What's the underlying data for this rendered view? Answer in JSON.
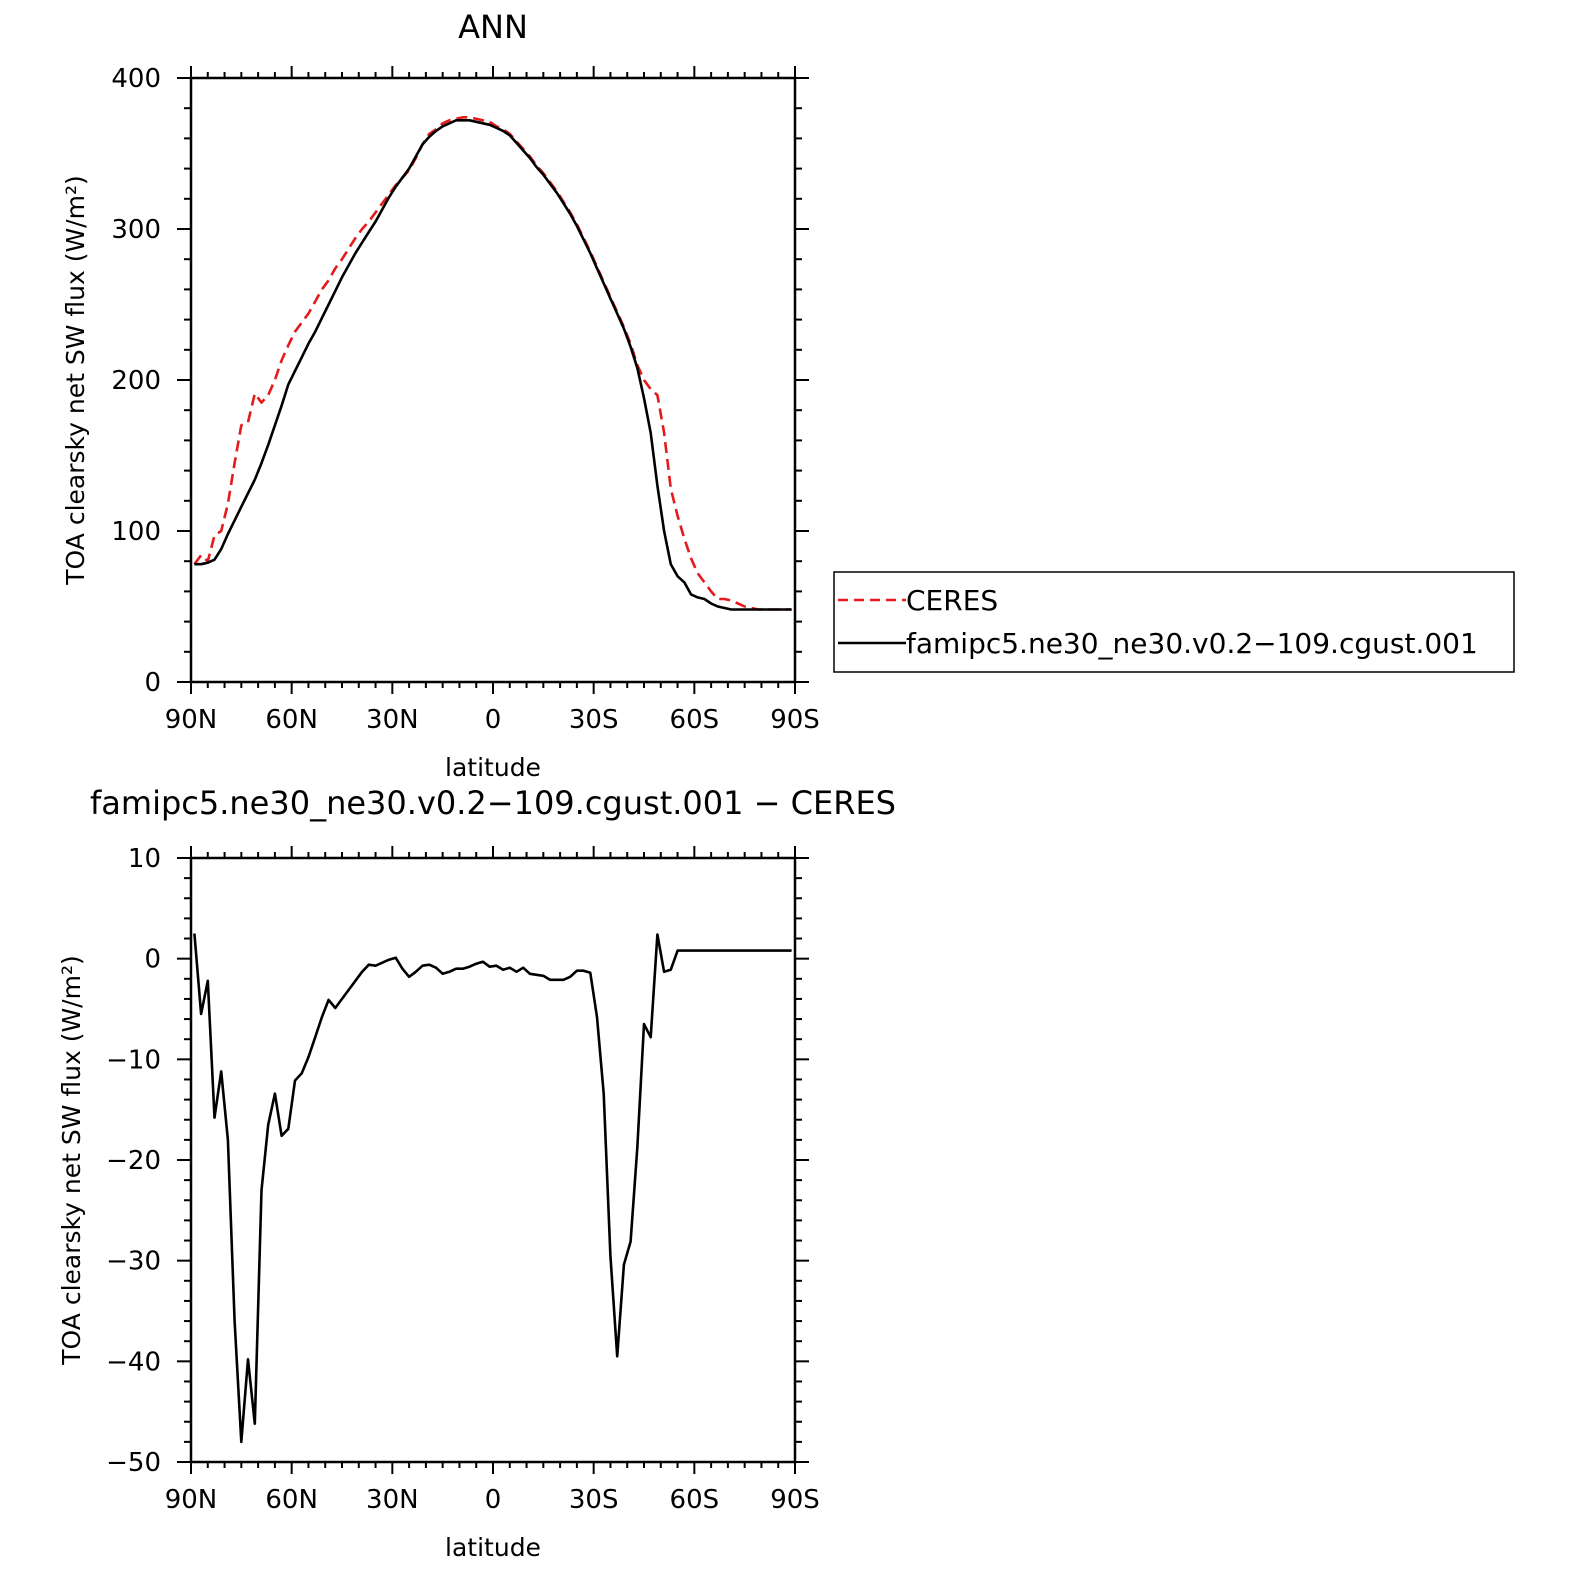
{
  "figure": {
    "top_title": "ANN",
    "bottom_title": "famipc5.ne30_ne30.v0.2−109.cgust.001  −  CERES"
  },
  "chart_data": [
    {
      "type": "line",
      "title": "ANN",
      "xlabel": "latitude",
      "ylabel": "TOA clearsky net SW flux (W/m²)",
      "ylim": [
        0,
        400
      ],
      "xlim": [
        90,
        -90
      ],
      "x_tick_values": [
        90,
        60,
        30,
        0,
        -30,
        -60,
        -90
      ],
      "x_tick_labels": [
        "90N",
        "60N",
        "30N",
        "0",
        "30S",
        "60S",
        "90S"
      ],
      "y_tick_values": [
        0,
        100,
        200,
        300,
        400
      ],
      "y_tick_labels": [
        "0",
        "100",
        "200",
        "300",
        "400"
      ],
      "grid": false,
      "legend_position": "right",
      "series": [
        {
          "name": "CERES",
          "color": "#e41a1c",
          "style": "dashed",
          "x": [
            89,
            87,
            85,
            83,
            81,
            79,
            77,
            75,
            73,
            71,
            69,
            67,
            65,
            63,
            61,
            59,
            57,
            55,
            53,
            51,
            49,
            47,
            45,
            43,
            41,
            39,
            37,
            35,
            33,
            31,
            29,
            27,
            25,
            23,
            21,
            19,
            17,
            15,
            13,
            11,
            9,
            7,
            5,
            3,
            1,
            -1,
            -3,
            -5,
            -7,
            -9,
            -11,
            -13,
            -15,
            -17,
            -19,
            -21,
            -23,
            -25,
            -27,
            -29,
            -31,
            -33,
            -35,
            -37,
            -39,
            -41,
            -43,
            -45,
            -47,
            -49,
            -51,
            -53,
            -55,
            -57,
            -59,
            -61,
            -63,
            -65,
            -67,
            -69,
            -71,
            -73,
            -75,
            -77,
            -79,
            -81,
            -83,
            -85,
            -87,
            -89
          ],
          "y": [
            78,
            84,
            80,
            97,
            100,
            118,
            145,
            170,
            172,
            191,
            185,
            190,
            200,
            213,
            223,
            232,
            238,
            244,
            252,
            260,
            266,
            274,
            280,
            287,
            294,
            300,
            305,
            311,
            317,
            323,
            329,
            334,
            339,
            347,
            356,
            363,
            366,
            370,
            372,
            373,
            374,
            374,
            373,
            372,
            371,
            368,
            366,
            363,
            358,
            353,
            348,
            342,
            337,
            331,
            325,
            318,
            311,
            303,
            294,
            285,
            275,
            265,
            255,
            245,
            235,
            224,
            210,
            200,
            194,
            190,
            165,
            128,
            110,
            95,
            82,
            72,
            66,
            60,
            55,
            55,
            54,
            52,
            50,
            49,
            48,
            48,
            48,
            48,
            48,
            48
          ]
        },
        {
          "name": "famipc5.ne30_ne30.v0.2−109.cgust.001",
          "color": "#000000",
          "style": "solid",
          "x": [
            89,
            87,
            85,
            83,
            81,
            79,
            77,
            75,
            73,
            71,
            69,
            67,
            65,
            63,
            61,
            59,
            57,
            55,
            53,
            51,
            49,
            47,
            45,
            43,
            41,
            39,
            37,
            35,
            33,
            31,
            29,
            27,
            25,
            23,
            21,
            19,
            17,
            15,
            13,
            11,
            9,
            7,
            5,
            3,
            1,
            -1,
            -3,
            -5,
            -7,
            -9,
            -11,
            -13,
            -15,
            -17,
            -19,
            -21,
            -23,
            -25,
            -27,
            -29,
            -31,
            -33,
            -35,
            -37,
            -39,
            -41,
            -43,
            -45,
            -47,
            -49,
            -51,
            -53,
            -55,
            -57,
            -59,
            -61,
            -63,
            -65,
            -67,
            -69,
            -71,
            -73,
            -75,
            -77,
            -79,
            -81,
            -83,
            -85,
            -87,
            -89
          ],
          "y": [
            78,
            78,
            79,
            81,
            88,
            98,
            107,
            116,
            125,
            134,
            145,
            157,
            170,
            183,
            197,
            206,
            215,
            224,
            232,
            241,
            250,
            259,
            268,
            276,
            284,
            291,
            298,
            305,
            313,
            321,
            328,
            334,
            340,
            348,
            356,
            361,
            365,
            368,
            370,
            372,
            372,
            372,
            371,
            370,
            369,
            367,
            365,
            362,
            357,
            352,
            347,
            341,
            336,
            330,
            324,
            317,
            310,
            302,
            293,
            284,
            274,
            264,
            254,
            244,
            234,
            222,
            208,
            188,
            165,
            130,
            100,
            78,
            70,
            66,
            58,
            56,
            55,
            52,
            50,
            49,
            48,
            48,
            48,
            48,
            48,
            48,
            48,
            48,
            48,
            48
          ]
        }
      ]
    },
    {
      "type": "line",
      "title": "famipc5.ne30_ne30.v0.2−109.cgust.001  −  CERES",
      "xlabel": "latitude",
      "ylabel": "TOA clearsky net SW flux (W/m²)",
      "ylim": [
        -50,
        10
      ],
      "xlim": [
        90,
        -90
      ],
      "x_tick_values": [
        90,
        60,
        30,
        0,
        -30,
        -60,
        -90
      ],
      "x_tick_labels": [
        "90N",
        "60N",
        "30N",
        "0",
        "30S",
        "60S",
        "90S"
      ],
      "y_tick_values": [
        -50,
        -40,
        -30,
        -20,
        -10,
        0,
        10
      ],
      "y_tick_labels": [
        "−50",
        "−40",
        "−30",
        "−20",
        "−10",
        "0",
        "10"
      ],
      "grid": false,
      "series": [
        {
          "color": "#000000",
          "style": "solid",
          "x": [
            89,
            87,
            85,
            83,
            81,
            79,
            77,
            75,
            73,
            71,
            69,
            67,
            65,
            63,
            61,
            59,
            57,
            55,
            53,
            51,
            49,
            47,
            45,
            43,
            41,
            39,
            37,
            35,
            33,
            31,
            29,
            27,
            25,
            23,
            21,
            19,
            17,
            15,
            13,
            11,
            9,
            7,
            5,
            3,
            1,
            -1,
            -3,
            -5,
            -7,
            -9,
            -11,
            -13,
            -15,
            -17,
            -19,
            -21,
            -23,
            -25,
            -27,
            -29,
            -31,
            -33,
            -35,
            -37,
            -39,
            -41,
            -43,
            -45,
            -47,
            -49,
            -51,
            -53,
            -55,
            -57,
            -59,
            -61,
            -63,
            -65,
            -67,
            -69,
            -71,
            -73,
            -75,
            -77,
            -79,
            -81,
            -83,
            -85,
            -87,
            -89
          ],
          "y": [
            2.5,
            -5.5,
            -2.2,
            -15.8,
            -11.2,
            -18,
            -36,
            -48,
            -39.8,
            -46.2,
            -23,
            -16.5,
            -13.4,
            -17.6,
            -16.9,
            -12.1,
            -11.4,
            -9.8,
            -7.8,
            -5.8,
            -4.1,
            -4.9,
            -4,
            -3.1,
            -2.2,
            -1.3,
            -0.6,
            -0.7,
            -0.4,
            -0.1,
            0.1,
            -1,
            -1.8,
            -1.3,
            -0.7,
            -0.6,
            -0.9,
            -1.5,
            -1.3,
            -1,
            -1,
            -0.8,
            -0.5,
            -0.3,
            -0.8,
            -0.7,
            -1.1,
            -0.9,
            -1.3,
            -0.9,
            -1.5,
            -1.6,
            -1.7,
            -2.1,
            -2.1,
            -2.1,
            -1.8,
            -1.2,
            -1.2,
            -1.4,
            -5.8,
            -13.4,
            -29.5,
            -39.5,
            -30.4,
            -28.1,
            -18.8,
            -6.5,
            -7.8,
            2.4,
            -1.3,
            -1.1,
            0.8,
            0.8,
            0.8,
            0.8,
            0.8,
            0.8,
            0.8,
            0.8,
            0.8,
            0.8,
            0.8,
            0.8,
            0.8,
            0.8,
            0.8,
            0.8,
            0.8,
            0.8
          ]
        }
      ]
    }
  ]
}
